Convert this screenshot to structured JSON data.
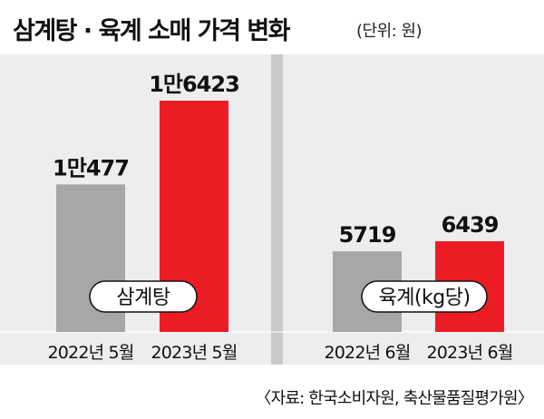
{
  "title": "삼계탕 · 육계 소매 가격 변화",
  "unit": "(단위: 원)",
  "source": "〈자료: 한국소비자원, 축산물품질평가원〉",
  "colors": {
    "gray_bar": "#a7a7a8",
    "red_bar": "#ec1c24",
    "panel_bg": "#ededee",
    "divider": "#c9c9ca"
  },
  "chart_data": [
    {
      "type": "bar",
      "label": "삼계탕",
      "categories": [
        "2022년 5월",
        "2023년 5월"
      ],
      "values": [
        10477,
        16423
      ],
      "data_labels": [
        "1만477",
        "1만6423"
      ],
      "ylim": [
        0,
        16423
      ]
    },
    {
      "type": "bar",
      "label": "육계(kg당)",
      "categories": [
        "2022년 6월",
        "2023년 6월"
      ],
      "values": [
        5719,
        6439
      ],
      "data_labels": [
        "5719",
        "6439"
      ],
      "ylim": [
        0,
        16423
      ]
    }
  ]
}
